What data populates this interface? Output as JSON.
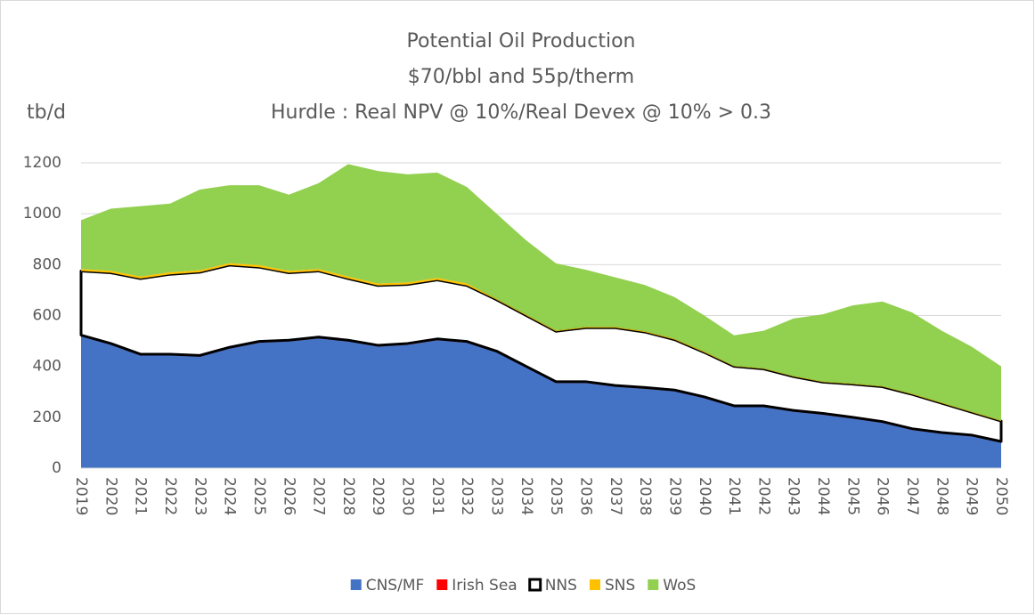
{
  "chart_data": {
    "type": "stacked_area",
    "title": [
      "Potential Oil Production",
      "$70/bbl and 55p/therm",
      "Hurdle : Real NPV @ 10%/Real Devex @ 10% > 0.3"
    ],
    "y_axis_label": "tb/d",
    "categories": [
      "2019",
      "2020",
      "2021",
      "2022",
      "2023",
      "2024",
      "2025",
      "2026",
      "2027",
      "2028",
      "2029",
      "2030",
      "2031",
      "2032",
      "2033",
      "2034",
      "2035",
      "2036",
      "2037",
      "2038",
      "2039",
      "2040",
      "2041",
      "2042",
      "2043",
      "2044",
      "2045",
      "2046",
      "2047",
      "2048",
      "2049",
      "2050"
    ],
    "series": [
      {
        "name": "CNS/MF",
        "color": "#4472c4",
        "values": [
          518,
          485,
          443,
          443,
          438,
          470,
          493,
          498,
          510,
          498,
          478,
          485,
          503,
          493,
          455,
          395,
          335,
          335,
          320,
          312,
          302,
          275,
          240,
          240,
          222,
          210,
          195,
          178,
          150,
          135,
          125,
          100
        ]
      },
      {
        "name": "Irish Sea",
        "color": "#ff0000",
        "values": [
          5,
          5,
          5,
          5,
          5,
          5,
          5,
          5,
          5,
          5,
          5,
          5,
          5,
          5,
          5,
          5,
          5,
          5,
          5,
          5,
          5,
          5,
          5,
          5,
          5,
          5,
          5,
          5,
          5,
          5,
          5,
          5
        ]
      },
      {
        "name": "NNS",
        "color": "#ffffff",
        "outline": "#000000",
        "values": [
          252,
          278,
          297,
          314,
          327,
          323,
          292,
          265,
          260,
          242,
          235,
          232,
          232,
          220,
          202,
          200,
          198,
          212,
          227,
          218,
          198,
          175,
          155,
          145,
          133,
          123,
          130,
          137,
          135,
          115,
          90,
          80
        ]
      },
      {
        "name": "SNS",
        "color": "#ffc000",
        "values": [
          8,
          8,
          8,
          8,
          8,
          8,
          8,
          8,
          8,
          8,
          8,
          8,
          8,
          8,
          3,
          3,
          3,
          3,
          3,
          3,
          3,
          3,
          2,
          2,
          2,
          2,
          2,
          2,
          2,
          2,
          2,
          2
        ]
      },
      {
        "name": "WoS",
        "color": "#92d050",
        "values": [
          192,
          244,
          277,
          270,
          317,
          306,
          314,
          299,
          337,
          442,
          442,
          425,
          414,
          379,
          335,
          292,
          264,
          225,
          195,
          182,
          164,
          142,
          120,
          148,
          226,
          265,
          308,
          333,
          320,
          283,
          256,
          213
        ]
      }
    ],
    "ylim": [
      0,
      1200
    ],
    "yticks": [
      0,
      200,
      400,
      600,
      800,
      1000,
      1200
    ],
    "grid": true,
    "legend": "bottom"
  }
}
